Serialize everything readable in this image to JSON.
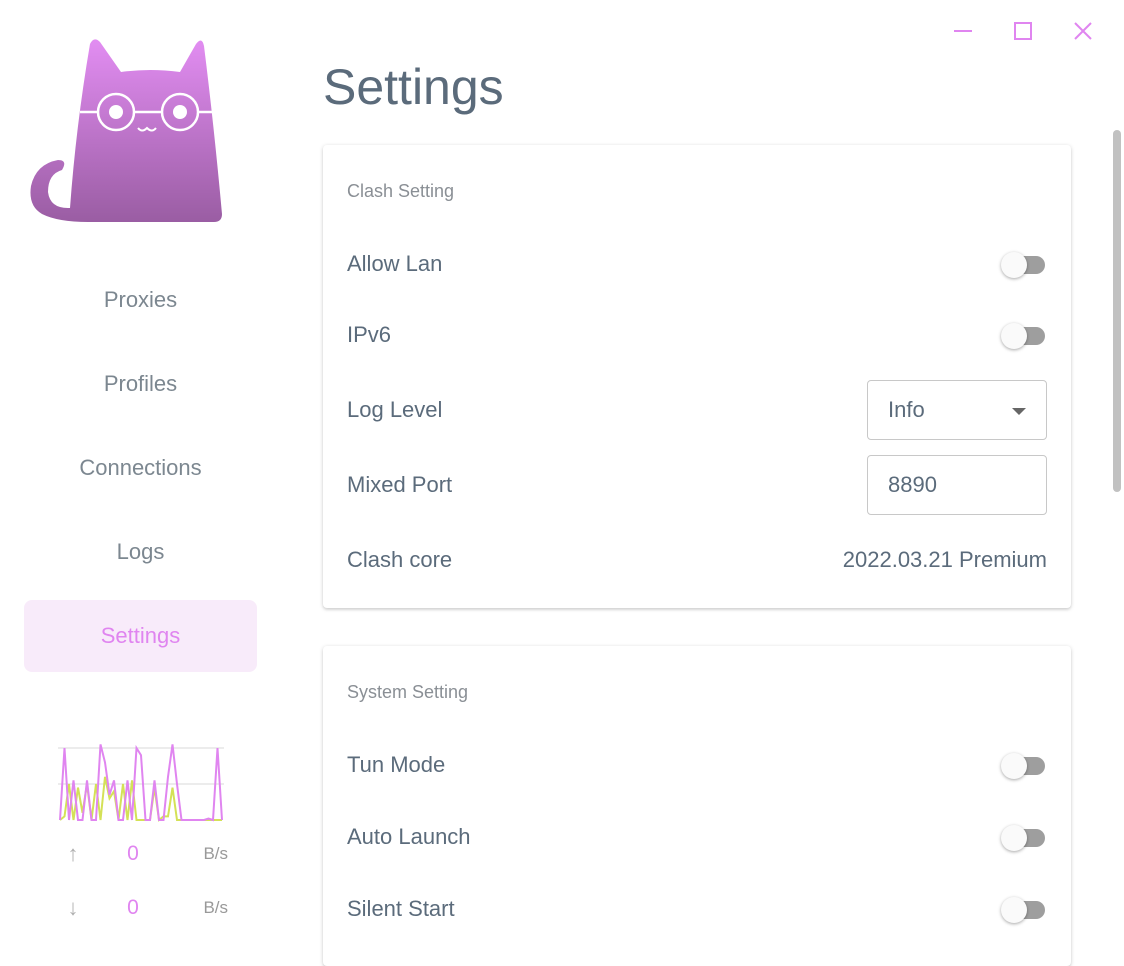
{
  "colors": {
    "accent": "#e085f0",
    "active_bg": "#f8ebfa",
    "download_line": "#d4e157",
    "switch_off": "#9e9e9e"
  },
  "window_controls": {
    "minimize": "minimize-icon",
    "maximize": "maximize-icon",
    "close": "close-icon"
  },
  "sidebar": {
    "items": [
      {
        "label": "Proxies",
        "active": false
      },
      {
        "label": "Profiles",
        "active": false
      },
      {
        "label": "Connections",
        "active": false
      },
      {
        "label": "Logs",
        "active": false
      },
      {
        "label": "Settings",
        "active": true
      }
    ],
    "traffic": {
      "upload_series": [
        0,
        100,
        0,
        55,
        0,
        0,
        55,
        0,
        0,
        105,
        80,
        35,
        55,
        0,
        0,
        55,
        0,
        100,
        90,
        0,
        0,
        55,
        0,
        0,
        60,
        105,
        50,
        0,
        0,
        0,
        0,
        0,
        0,
        2,
        0,
        100,
        0
      ],
      "download_series": [
        0,
        5,
        50,
        0,
        45,
        10,
        50,
        0,
        50,
        0,
        60,
        30,
        40,
        0,
        50,
        0,
        55,
        0,
        0,
        0,
        0,
        45,
        0,
        5,
        5,
        45,
        0,
        0,
        0,
        0,
        0,
        0,
        0,
        0,
        0,
        0,
        0
      ],
      "upload": {
        "value": "0",
        "unit": "B/s"
      },
      "download": {
        "value": "0",
        "unit": "B/s"
      }
    }
  },
  "main": {
    "title": "Settings",
    "clash_setting": {
      "title": "Clash Setting",
      "allow_lan": {
        "label": "Allow Lan",
        "on": false
      },
      "ipv6": {
        "label": "IPv6",
        "on": false
      },
      "log_level": {
        "label": "Log Level",
        "value": "Info"
      },
      "mixed_port": {
        "label": "Mixed Port",
        "value": "8890"
      },
      "clash_core": {
        "label": "Clash core",
        "value": "2022.03.21 Premium"
      }
    },
    "system_setting": {
      "title": "System Setting",
      "tun_mode": {
        "label": "Tun Mode",
        "on": false
      },
      "auto_launch": {
        "label": "Auto Launch",
        "on": false
      },
      "silent_start": {
        "label": "Silent Start",
        "on": false
      }
    }
  }
}
